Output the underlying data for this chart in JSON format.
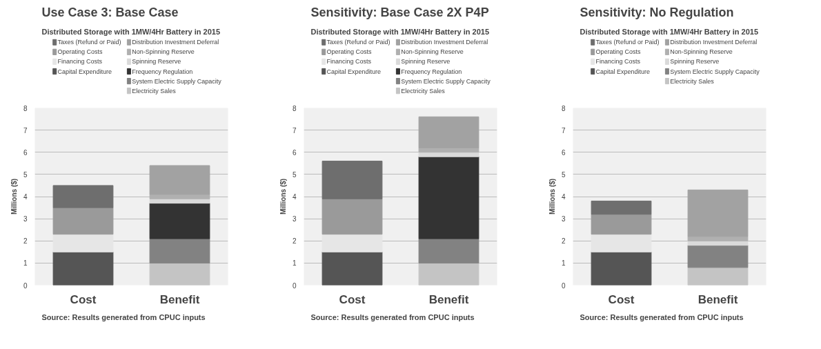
{
  "chart_data": [
    {
      "type": "bar",
      "stacked": true,
      "title": "Use Case 3: Base Case",
      "subtitle": "Distributed Storage with  1MW/4Hr Battery in 2015",
      "ylabel": "Millions ($)",
      "categories": [
        "Cost",
        "Benefit"
      ],
      "ylim": [
        0,
        8
      ],
      "yticks": [
        0,
        1,
        2,
        3,
        4,
        5,
        6,
        7,
        8
      ],
      "grid": "y",
      "legend": "top",
      "annotations": [
        "Source: Results generated from CPUC inputs"
      ],
      "series": [
        {
          "name": "Capital Expenditure",
          "color": "#555555",
          "values": [
            1.5,
            null
          ]
        },
        {
          "name": "Financing Costs",
          "color": "#e6e6e6",
          "values": [
            0.8,
            null
          ]
        },
        {
          "name": "Operating Costs",
          "color": "#9a9a9a",
          "values": [
            1.2,
            null
          ]
        },
        {
          "name": "Taxes (Refund or Paid)",
          "color": "#6e6e6e",
          "values": [
            1.0,
            null
          ]
        },
        {
          "name": "Electricity Sales",
          "color": "#c4c4c4",
          "values": [
            null,
            1.0
          ]
        },
        {
          "name": "System Electric Supply Capacity",
          "color": "#828282",
          "values": [
            null,
            1.1
          ]
        },
        {
          "name": "Frequency Regulation",
          "color": "#333333",
          "values": [
            null,
            1.6
          ]
        },
        {
          "name": "Spinning Reserve",
          "color": "#dadada",
          "values": [
            null,
            0.2
          ]
        },
        {
          "name": "Non-Spinning Reserve",
          "color": "#b0b0b0",
          "values": [
            null,
            0.2
          ]
        },
        {
          "name": "Distribution Investment  Deferral",
          "color": "#a2a2a2",
          "values": [
            null,
            1.3
          ]
        }
      ]
    },
    {
      "type": "bar",
      "stacked": true,
      "title": "Sensitivity: Base Case 2X P4P",
      "subtitle": "Distributed Storage with  1MW/4Hr Battery in 2015",
      "ylabel": "Millions ($)",
      "categories": [
        "Cost",
        "Benefit"
      ],
      "ylim": [
        0,
        8
      ],
      "yticks": [
        0,
        1,
        2,
        3,
        4,
        5,
        6,
        7,
        8
      ],
      "grid": "y",
      "legend": "top",
      "annotations": [
        "Source: Results generated from CPUC inputs"
      ],
      "series": [
        {
          "name": "Capital Expenditure",
          "color": "#555555",
          "values": [
            1.5,
            null
          ]
        },
        {
          "name": "Financing Costs",
          "color": "#e6e6e6",
          "values": [
            0.8,
            null
          ]
        },
        {
          "name": "Operating Costs",
          "color": "#9a9a9a",
          "values": [
            1.6,
            null
          ]
        },
        {
          "name": "Taxes (Refund or Paid)",
          "color": "#6e6e6e",
          "values": [
            1.7,
            null
          ]
        },
        {
          "name": "Electricity Sales",
          "color": "#c4c4c4",
          "values": [
            null,
            1.0
          ]
        },
        {
          "name": "System Electric Supply Capacity",
          "color": "#828282",
          "values": [
            null,
            1.1
          ]
        },
        {
          "name": "Frequency Regulation",
          "color": "#333333",
          "values": [
            null,
            3.7
          ]
        },
        {
          "name": "Spinning Reserve",
          "color": "#dadada",
          "values": [
            null,
            0.2
          ]
        },
        {
          "name": "Non-Spinning Reserve",
          "color": "#b0b0b0",
          "values": [
            null,
            0.2
          ]
        },
        {
          "name": "Distribution Investment  Deferral",
          "color": "#a2a2a2",
          "values": [
            null,
            1.4
          ]
        }
      ]
    },
    {
      "type": "bar",
      "stacked": true,
      "title": "Sensitivity: No Regulation",
      "subtitle": "Distributed Storage with  1MW/4Hr Battery in 2015",
      "ylabel": "Millions ($)",
      "categories": [
        "Cost",
        "Benefit"
      ],
      "ylim": [
        0,
        8
      ],
      "yticks": [
        0,
        1,
        2,
        3,
        4,
        5,
        6,
        7,
        8
      ],
      "grid": "y",
      "legend": "top",
      "annotations": [
        "Source: Results generated from CPUC inputs"
      ],
      "series": [
        {
          "name": "Capital Expenditure",
          "color": "#555555",
          "values": [
            1.5,
            null
          ]
        },
        {
          "name": "Financing Costs",
          "color": "#e6e6e6",
          "values": [
            0.8,
            null
          ]
        },
        {
          "name": "Operating Costs",
          "color": "#9a9a9a",
          "values": [
            0.9,
            null
          ]
        },
        {
          "name": "Taxes (Refund or Paid)",
          "color": "#6e6e6e",
          "values": [
            0.6,
            null
          ]
        },
        {
          "name": "Electricity Sales",
          "color": "#c4c4c4",
          "values": [
            null,
            0.8
          ]
        },
        {
          "name": "System Electric Supply Capacity",
          "color": "#828282",
          "values": [
            null,
            1.0
          ]
        },
        {
          "name": "Spinning Reserve",
          "color": "#dadada",
          "values": [
            null,
            0.2
          ]
        },
        {
          "name": "Non-Spinning Reserve",
          "color": "#b0b0b0",
          "values": [
            null,
            0.2
          ]
        },
        {
          "name": "Distribution Investment  Deferral",
          "color": "#a2a2a2",
          "values": [
            null,
            2.1
          ]
        }
      ]
    }
  ]
}
